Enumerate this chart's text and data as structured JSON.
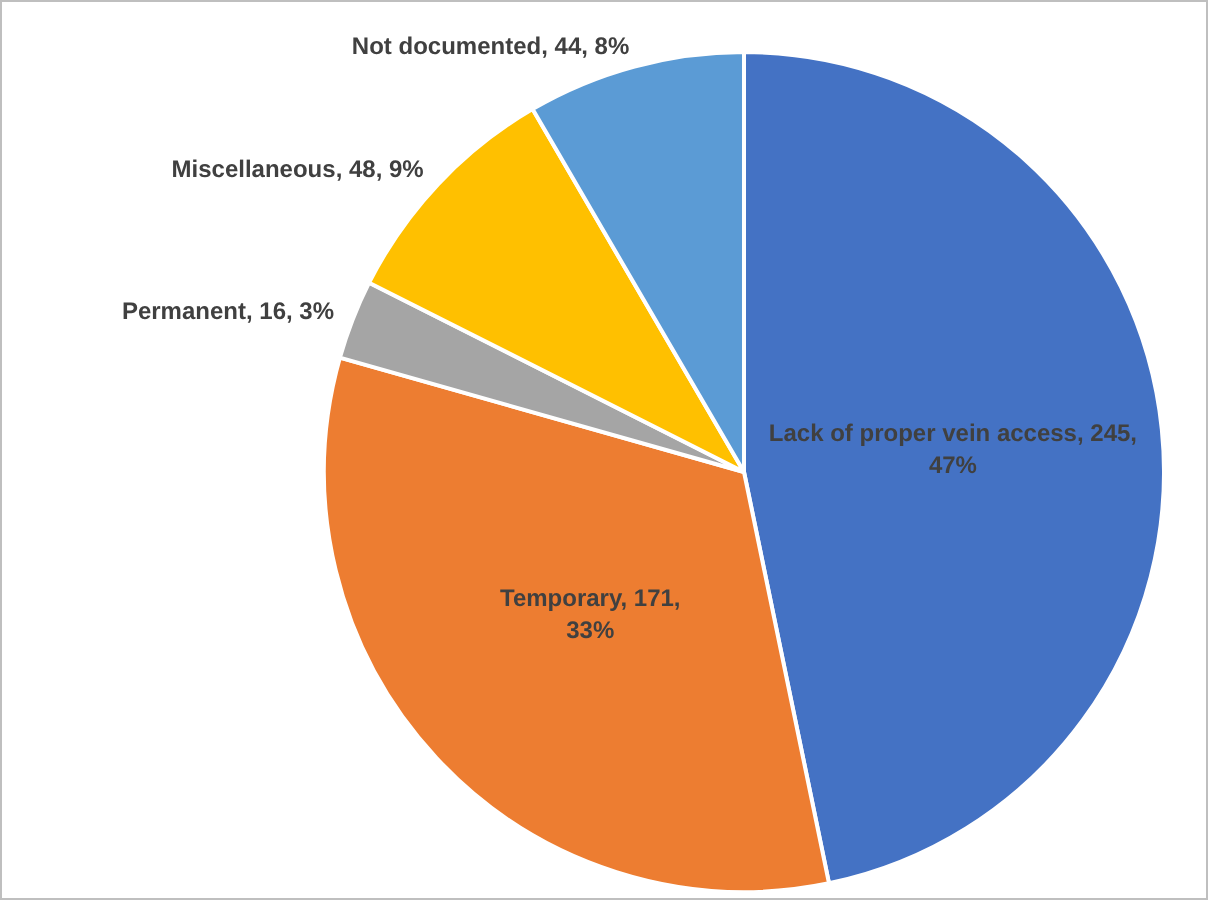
{
  "chart_data": {
    "type": "pie",
    "categories": [
      "Lack of proper vein access",
      "Temporary",
      "Permanent",
      "Miscellaneous",
      "Not documented"
    ],
    "values": [
      245,
      171,
      16,
      48,
      44
    ],
    "colors": [
      "#4472c4",
      "#ed7d31",
      "#a5a5a5",
      "#ffc000",
      "#5b9bd5"
    ],
    "value_labels": [
      "245, 47%",
      "171, 33%",
      "16, 3%",
      "48, 9%",
      "44, 8%"
    ],
    "legend": false
  }
}
